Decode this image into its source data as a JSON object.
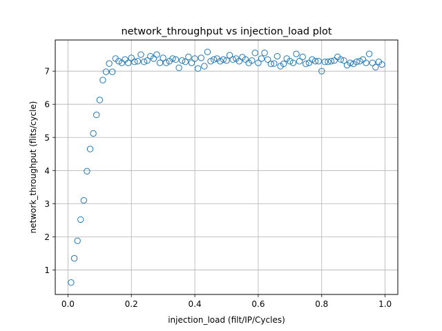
{
  "chart_data": {
    "type": "scatter",
    "title": "network_throughput vs injection_load plot",
    "xlabel": "injection_load (filt/IP/Cycles)",
    "ylabel": "network_throughput (flits/cycle)",
    "xlim": [
      -0.04,
      1.04
    ],
    "ylim": [
      0.26,
      7.94
    ],
    "xticks": [
      0.0,
      0.2,
      0.4,
      0.6,
      0.8,
      1.0
    ],
    "xtick_labels": [
      "0.0",
      "0.2",
      "0.4",
      "0.6",
      "0.8",
      "1.0"
    ],
    "yticks": [
      1,
      2,
      3,
      4,
      5,
      6,
      7
    ],
    "ytick_labels": [
      "1",
      "2",
      "3",
      "4",
      "5",
      "6",
      "7"
    ],
    "grid": true,
    "marker": "hollow-circle",
    "color": "#1f77b4",
    "x": [
      0.01,
      0.02,
      0.03,
      0.04,
      0.05,
      0.06,
      0.07,
      0.08,
      0.09,
      0.1,
      0.11,
      0.12,
      0.13,
      0.14,
      0.15,
      0.16,
      0.17,
      0.18,
      0.19,
      0.2,
      0.21,
      0.22,
      0.23,
      0.24,
      0.25,
      0.26,
      0.27,
      0.28,
      0.29,
      0.3,
      0.31,
      0.32,
      0.33,
      0.34,
      0.35,
      0.36,
      0.37,
      0.38,
      0.39,
      0.4,
      0.41,
      0.42,
      0.43,
      0.44,
      0.45,
      0.46,
      0.47,
      0.48,
      0.49,
      0.5,
      0.51,
      0.52,
      0.53,
      0.54,
      0.55,
      0.56,
      0.57,
      0.58,
      0.59,
      0.6,
      0.61,
      0.62,
      0.63,
      0.64,
      0.65,
      0.66,
      0.67,
      0.68,
      0.69,
      0.7,
      0.71,
      0.72,
      0.73,
      0.74,
      0.75,
      0.76,
      0.77,
      0.78,
      0.79,
      0.8,
      0.81,
      0.82,
      0.83,
      0.84,
      0.85,
      0.86,
      0.87,
      0.88,
      0.89,
      0.9,
      0.91,
      0.92,
      0.93,
      0.94,
      0.95,
      0.96,
      0.97,
      0.98,
      0.99
    ],
    "y": [
      0.62,
      1.35,
      1.88,
      2.52,
      3.1,
      3.98,
      4.65,
      5.12,
      5.68,
      6.13,
      6.73,
      6.98,
      7.23,
      6.98,
      7.38,
      7.3,
      7.25,
      7.35,
      7.25,
      7.4,
      7.28,
      7.3,
      7.5,
      7.28,
      7.32,
      7.45,
      7.38,
      7.5,
      7.25,
      7.4,
      7.25,
      7.3,
      7.38,
      7.35,
      7.1,
      7.32,
      7.28,
      7.43,
      7.25,
      7.38,
      7.08,
      7.4,
      7.15,
      7.58,
      7.3,
      7.35,
      7.38,
      7.3,
      7.35,
      7.32,
      7.48,
      7.35,
      7.38,
      7.3,
      7.42,
      7.35,
      7.25,
      7.32,
      7.55,
      7.25,
      7.38,
      7.55,
      7.35,
      7.22,
      7.23,
      7.45,
      7.15,
      7.22,
      7.38,
      7.3,
      7.25,
      7.52,
      7.3,
      7.43,
      7.22,
      7.25,
      7.35,
      7.3,
      7.3,
      7.0,
      7.28,
      7.28,
      7.3,
      7.32,
      7.43,
      7.35,
      7.32,
      7.18,
      7.25,
      7.22,
      7.28,
      7.3,
      7.35,
      7.25,
      7.52,
      7.25,
      7.12,
      7.28,
      7.2
    ]
  }
}
